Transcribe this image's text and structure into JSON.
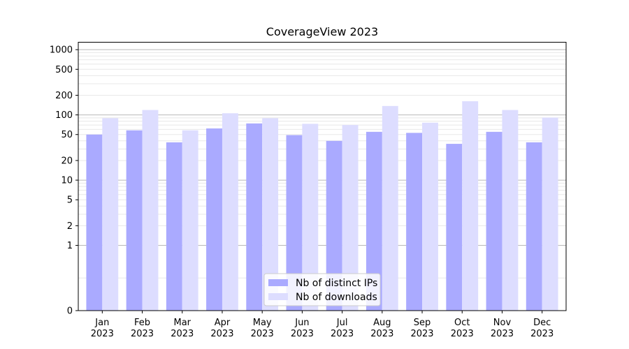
{
  "chart_data": {
    "type": "bar",
    "title": "CoverageView 2023",
    "xlabel": "",
    "ylabel": "",
    "y_scale": "symlog",
    "ylim": [
      0,
      1300
    ],
    "y_ticks": [
      {
        "value": 0,
        "label": "0"
      },
      {
        "value": 1,
        "label": "1"
      },
      {
        "value": 2,
        "label": "2"
      },
      {
        "value": 5,
        "label": "5"
      },
      {
        "value": 10,
        "label": "10"
      },
      {
        "value": 20,
        "label": "20"
      },
      {
        "value": 50,
        "label": "50"
      },
      {
        "value": 100,
        "label": "100"
      },
      {
        "value": 200,
        "label": "200"
      },
      {
        "value": 500,
        "label": "500"
      },
      {
        "value": 1000,
        "label": "1000"
      }
    ],
    "grid": true,
    "legend_position": "lower center",
    "categories": [
      {
        "month": "Jan",
        "year": "2023"
      },
      {
        "month": "Feb",
        "year": "2023"
      },
      {
        "month": "Mar",
        "year": "2023"
      },
      {
        "month": "Apr",
        "year": "2023"
      },
      {
        "month": "May",
        "year": "2023"
      },
      {
        "month": "Jun",
        "year": "2023"
      },
      {
        "month": "Jul",
        "year": "2023"
      },
      {
        "month": "Aug",
        "year": "2023"
      },
      {
        "month": "Sep",
        "year": "2023"
      },
      {
        "month": "Oct",
        "year": "2023"
      },
      {
        "month": "Nov",
        "year": "2023"
      },
      {
        "month": "Dec",
        "year": "2023"
      }
    ],
    "series": [
      {
        "name": "Nb of distinct IPs",
        "color": "#aaaaff",
        "values": [
          50,
          58,
          38,
          62,
          74,
          49,
          40,
          55,
          53,
          36,
          55,
          38
        ]
      },
      {
        "name": "Nb of downloads",
        "color": "#ddddff",
        "values": [
          89,
          119,
          58,
          106,
          89,
          73,
          70,
          137,
          76,
          162,
          119,
          91
        ]
      }
    ]
  }
}
